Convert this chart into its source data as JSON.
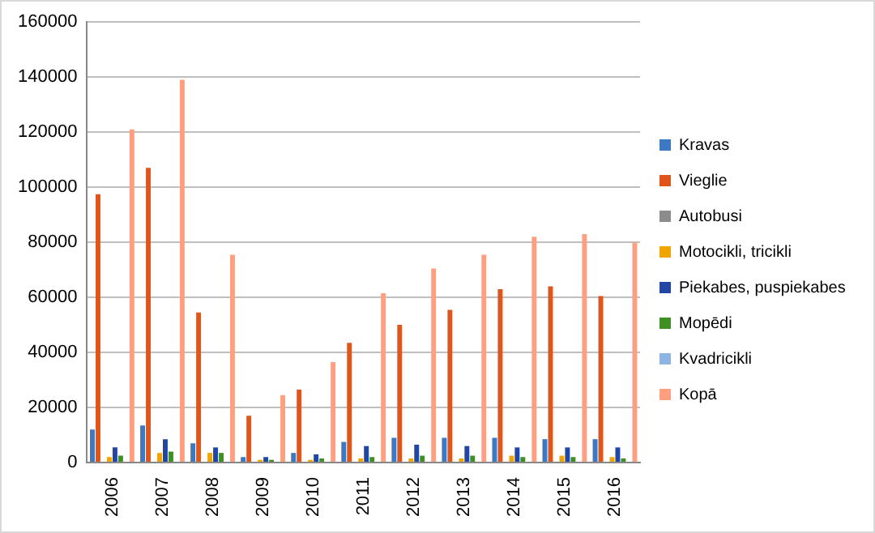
{
  "chart_data": {
    "type": "bar",
    "categories": [
      "2006",
      "2007",
      "2008",
      "2009",
      "2010",
      "2011",
      "2012",
      "2013",
      "2014",
      "2015",
      "2016"
    ],
    "ylim": [
      0,
      160000
    ],
    "yticks": [
      0,
      20000,
      40000,
      60000,
      80000,
      100000,
      120000,
      140000,
      160000
    ],
    "grid": "y",
    "legend": "right",
    "series": [
      {
        "name": "Kravas",
        "color": "#3d78c2",
        "values": [
          12000,
          13500,
          7000,
          2000,
          3500,
          7500,
          9000,
          9000,
          9000,
          8500,
          8500
        ]
      },
      {
        "name": "Vieglie",
        "color": "#e0561a",
        "values": [
          97500,
          107000,
          54500,
          17000,
          26500,
          43500,
          50000,
          55500,
          63000,
          64000,
          60500
        ]
      },
      {
        "name": "Autobusi",
        "color": "#8c8c8c",
        "values": [
          300,
          300,
          300,
          300,
          300,
          300,
          300,
          300,
          300,
          300,
          300
        ]
      },
      {
        "name": "Motocikli, tricikli",
        "color": "#f0a500",
        "values": [
          2000,
          3500,
          3500,
          1000,
          1000,
          1500,
          1500,
          1500,
          2500,
          2500,
          2000
        ]
      },
      {
        "name": "Piekabes, puspiekabes",
        "color": "#2146a6",
        "values": [
          5500,
          8500,
          5500,
          2000,
          3000,
          6000,
          6500,
          6000,
          5500,
          5500,
          5500
        ]
      },
      {
        "name": "Mopēdi",
        "color": "#3f8f24",
        "values": [
          2500,
          4000,
          3500,
          1000,
          1500,
          2000,
          2500,
          2500,
          2000,
          2000,
          1500
        ]
      },
      {
        "name": "Kvadricikli",
        "color": "#8db4e2",
        "values": [
          null,
          null,
          null,
          null,
          null,
          null,
          null,
          null,
          null,
          null,
          null
        ]
      },
      {
        "name": "Kopā",
        "color": "#ff9f7f",
        "values": [
          121000,
          139000,
          75500,
          24500,
          36500,
          61500,
          70500,
          75500,
          82000,
          83000,
          80000
        ]
      }
    ]
  }
}
